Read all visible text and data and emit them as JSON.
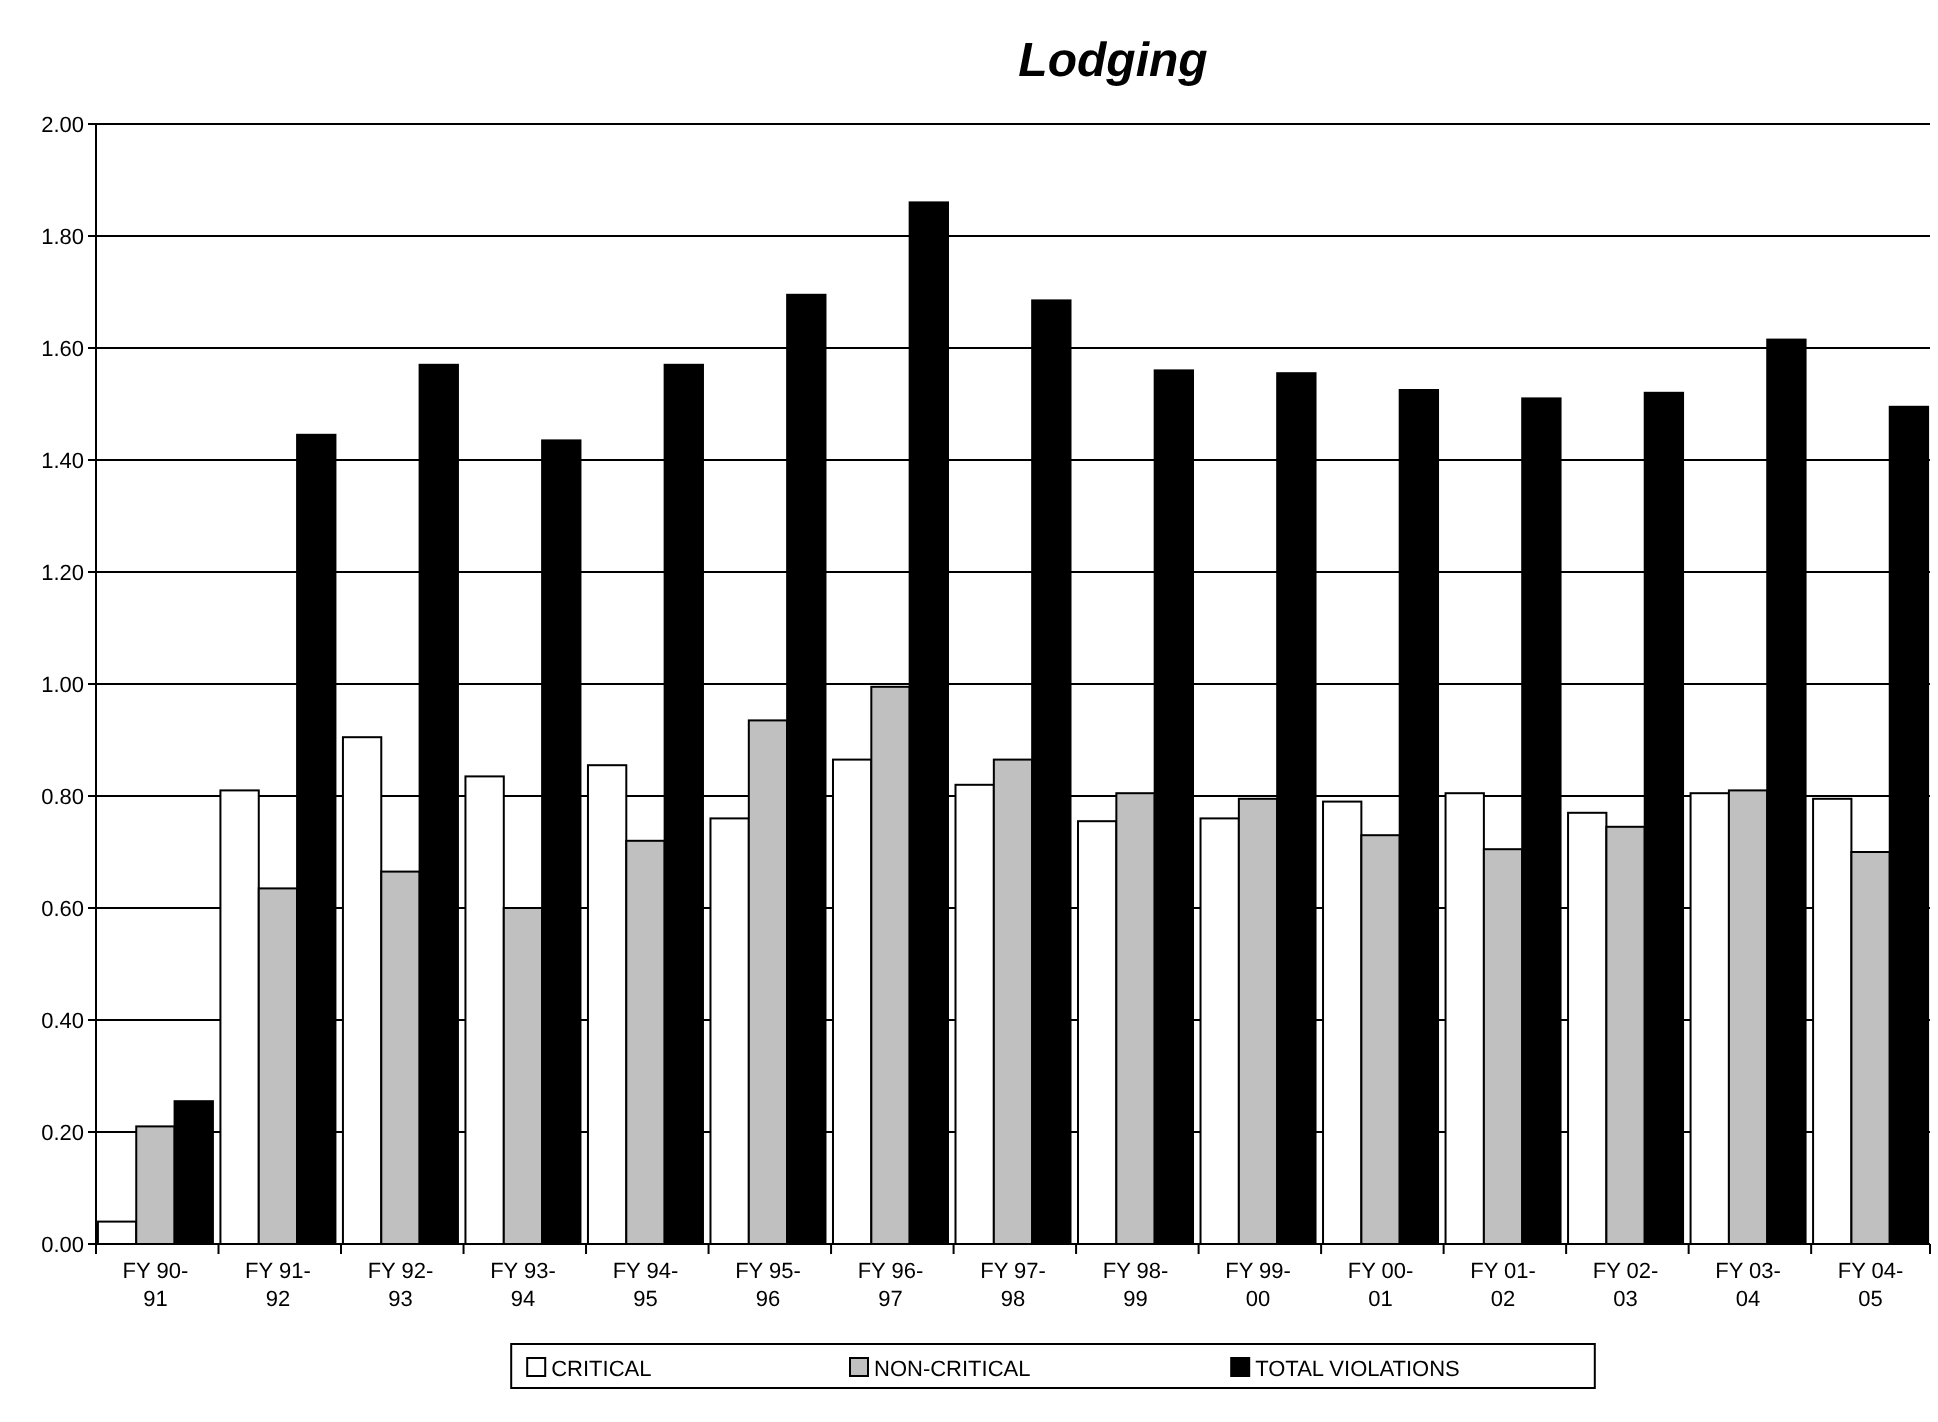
{
  "chart_data": {
    "type": "bar",
    "title": "Lodging",
    "categories": [
      "FY 90-91",
      "FY 91-92",
      "FY 92-93",
      "FY 93-94",
      "FY 94-95",
      "FY 95-96",
      "FY 96-97",
      "FY 97-98",
      "FY 98-99",
      "FY 99-00",
      "FY 00-01",
      "FY 01-02",
      "FY 02-03",
      "FY 03-04",
      "FY 04-05"
    ],
    "series": [
      {
        "name": "CRITICAL",
        "color": "#ffffff",
        "values": [
          0.04,
          0.81,
          0.905,
          0.835,
          0.855,
          0.76,
          0.865,
          0.82,
          0.755,
          0.76,
          0.79,
          0.805,
          0.77,
          0.805,
          0.795
        ]
      },
      {
        "name": "NON-CRITICAL",
        "color": "#c0c0c0",
        "values": [
          0.21,
          0.635,
          0.665,
          0.6,
          0.72,
          0.935,
          0.995,
          0.865,
          0.805,
          0.795,
          0.73,
          0.705,
          0.745,
          0.81,
          0.7
        ]
      },
      {
        "name": "TOTAL VIOLATIONS",
        "color": "#000000",
        "values": [
          0.255,
          1.445,
          1.57,
          1.435,
          1.57,
          1.695,
          1.86,
          1.685,
          1.56,
          1.555,
          1.525,
          1.51,
          1.52,
          1.615,
          1.495
        ]
      }
    ],
    "ylim": [
      0,
      2
    ],
    "yticks": [
      {
        "value": 0,
        "label": "0.00"
      },
      {
        "value": 0.2,
        "label": "0.20"
      },
      {
        "value": 0.4,
        "label": "0.40"
      },
      {
        "value": 0.6,
        "label": "0.60"
      },
      {
        "value": 0.8,
        "label": "0.80"
      },
      {
        "value": 1,
        "label": "1.00"
      },
      {
        "value": 1.2,
        "label": "1.20"
      },
      {
        "value": 1.4,
        "label": "1.40"
      },
      {
        "value": 1.6,
        "label": "1.60"
      },
      {
        "value": 1.8,
        "label": "1.80"
      },
      {
        "value": 2,
        "label": "2.00"
      }
    ],
    "grid": "y",
    "legend": "bottom"
  }
}
